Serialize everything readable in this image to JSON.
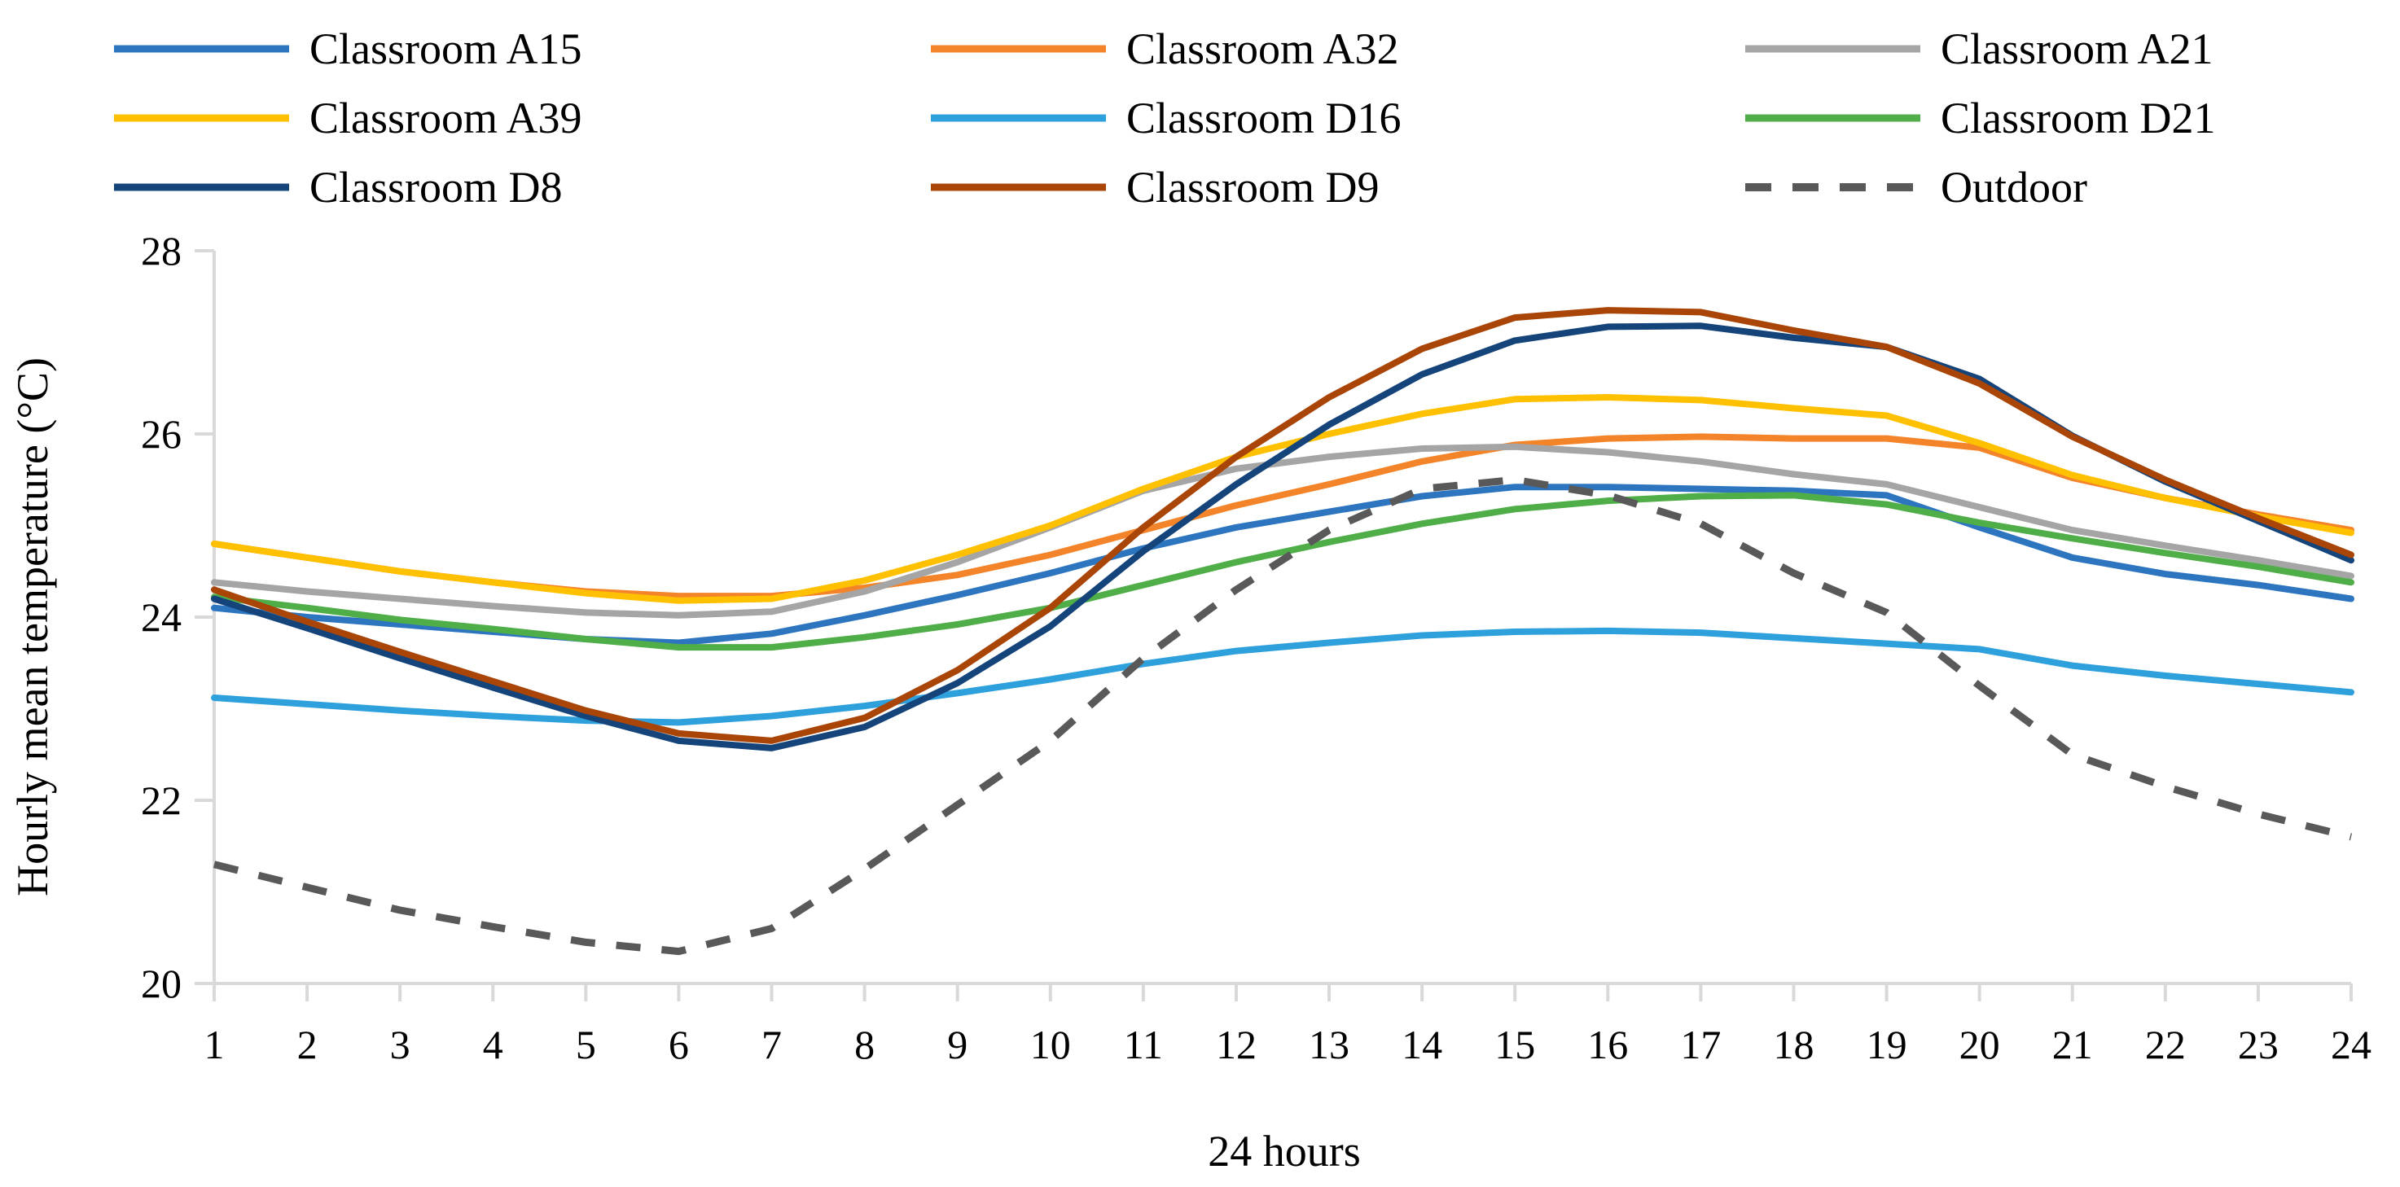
{
  "chart_data": {
    "type": "line",
    "title": "",
    "xlabel": "24 hours",
    "ylabel": "Hourly mean temperature (°C)",
    "ylim": [
      20,
      28
    ],
    "yticks": [
      20,
      22,
      24,
      26,
      28
    ],
    "grid": false,
    "legend_position": "top",
    "x": [
      1,
      2,
      3,
      4,
      5,
      6,
      7,
      8,
      9,
      10,
      11,
      12,
      13,
      14,
      15,
      16,
      17,
      18,
      19,
      20,
      21,
      22,
      23,
      24
    ],
    "series": [
      {
        "name": "Classroom A15",
        "color": "#2e75c0",
        "dash": false,
        "values": [
          24.1,
          24.0,
          23.92,
          23.84,
          23.76,
          23.72,
          23.82,
          24.02,
          24.24,
          24.48,
          24.75,
          24.98,
          25.15,
          25.32,
          25.42,
          25.42,
          25.4,
          25.38,
          25.33,
          24.98,
          24.65,
          24.47,
          24.35,
          24.2
        ]
      },
      {
        "name": "Classroom A32",
        "color": "#f4842a",
        "dash": false,
        "values": [
          24.8,
          24.65,
          24.5,
          24.38,
          24.28,
          24.23,
          24.23,
          24.32,
          24.46,
          24.68,
          24.95,
          25.22,
          25.45,
          25.7,
          25.88,
          25.95,
          25.97,
          25.95,
          25.95,
          25.85,
          25.52,
          25.3,
          25.12,
          24.95
        ]
      },
      {
        "name": "Classroom A21",
        "color": "#a5a5a5",
        "dash": false,
        "values": [
          24.38,
          24.28,
          24.2,
          24.12,
          24.05,
          24.02,
          24.06,
          24.28,
          24.6,
          24.98,
          25.38,
          25.62,
          25.75,
          25.84,
          25.86,
          25.8,
          25.7,
          25.56,
          25.45,
          25.2,
          24.95,
          24.78,
          24.62,
          24.45
        ]
      },
      {
        "name": "Classroom A39",
        "color": "#ffc000",
        "dash": false,
        "values": [
          24.8,
          24.65,
          24.5,
          24.38,
          24.26,
          24.18,
          24.2,
          24.4,
          24.68,
          25.0,
          25.4,
          25.75,
          26.0,
          26.22,
          26.38,
          26.4,
          26.37,
          26.28,
          26.2,
          25.9,
          25.55,
          25.3,
          25.1,
          24.92
        ]
      },
      {
        "name": "Classroom D16",
        "color": "#2ea0dc",
        "dash": false,
        "values": [
          23.12,
          23.05,
          22.98,
          22.92,
          22.87,
          22.85,
          22.92,
          23.03,
          23.17,
          23.32,
          23.49,
          23.63,
          23.72,
          23.8,
          23.84,
          23.85,
          23.83,
          23.77,
          23.71,
          23.65,
          23.47,
          23.36,
          23.27,
          23.18
        ]
      },
      {
        "name": "Classroom D21",
        "color": "#4fae48",
        "dash": false,
        "values": [
          24.22,
          24.1,
          23.97,
          23.87,
          23.76,
          23.67,
          23.67,
          23.78,
          23.92,
          24.1,
          24.35,
          24.6,
          24.82,
          25.02,
          25.18,
          25.27,
          25.32,
          25.33,
          25.23,
          25.03,
          24.86,
          24.7,
          24.55,
          24.38
        ]
      },
      {
        "name": "Classroom D8",
        "color": "#15447a",
        "dash": false,
        "values": [
          24.2,
          23.88,
          23.55,
          23.23,
          22.92,
          22.65,
          22.57,
          22.8,
          23.28,
          23.9,
          24.72,
          25.45,
          26.1,
          26.65,
          27.02,
          27.17,
          27.18,
          27.05,
          26.95,
          26.6,
          25.98,
          25.48,
          25.05,
          24.62
        ]
      },
      {
        "name": "Classroom D9",
        "color": "#aa4508",
        "dash": false,
        "values": [
          24.3,
          23.95,
          23.62,
          23.3,
          22.98,
          22.73,
          22.65,
          22.9,
          23.42,
          24.1,
          24.98,
          25.75,
          26.4,
          26.93,
          27.27,
          27.35,
          27.33,
          27.13,
          26.95,
          26.55,
          25.97,
          25.5,
          25.08,
          24.68
        ]
      },
      {
        "name": "Outdoor",
        "color": "#595959",
        "dash": true,
        "values": [
          21.3,
          21.05,
          20.8,
          20.62,
          20.45,
          20.35,
          20.6,
          21.25,
          21.95,
          22.65,
          23.55,
          24.3,
          24.95,
          25.4,
          25.5,
          25.33,
          25.02,
          24.48,
          24.05,
          23.25,
          22.5,
          22.15,
          21.85,
          21.6
        ]
      }
    ]
  }
}
